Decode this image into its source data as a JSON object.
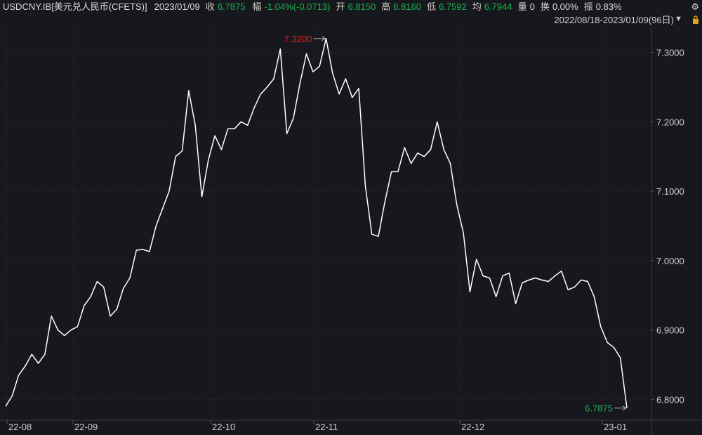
{
  "header": {
    "symbol": "USDCNY.IB[美元兑人民币(CFETS)]",
    "date": "2023/01/09",
    "close_label": "收",
    "close_value": "6.7875",
    "change_label": "幅",
    "change_value": "-1.04%(-0.0713)",
    "open_label": "开",
    "open_value": "6.8150",
    "high_label": "高",
    "high_value": "6.8160",
    "low_label": "低",
    "low_value": "6.7592",
    "avg_label": "均",
    "avg_value": "6.7944",
    "volume_label": "量",
    "volume_value": "0",
    "turnover_label": "换",
    "turnover_value": "0.00%",
    "amplitude_label": "振",
    "amplitude_value": "0.83%",
    "range_text": "2022/08/18-2023/01/09(96日)",
    "icons": [
      "gear-icon",
      "dropdown-triangle-icon",
      "lock-icon"
    ]
  },
  "colors": {
    "background": "#17181d",
    "line": "#ffffff",
    "up_red": "#e02020",
    "down_green": "#19b34c",
    "axis_text": "#cfcfcf",
    "grid": "#2e3038"
  },
  "chart_data": {
    "type": "line",
    "title": "",
    "xlabel": "",
    "ylabel": "",
    "ylim": [
      6.77,
      7.335
    ],
    "y_ticks": [
      "6.8000",
      "6.9000",
      "7.0000",
      "7.1000",
      "7.2000",
      "7.3000"
    ],
    "x_ticks": [
      "22-08",
      "22-09",
      "22-10",
      "22-11",
      "22-12",
      "23-01"
    ],
    "grid": true,
    "legend": "none",
    "annotations": [
      {
        "text": "7.3200",
        "value": 7.32,
        "kind": "high"
      },
      {
        "text": "6.7875",
        "value": 6.7875,
        "kind": "last"
      }
    ],
    "series": [
      {
        "values": [
          6.79,
          6.805,
          6.835,
          6.848,
          6.865,
          6.852,
          6.865,
          6.92,
          6.9,
          6.892,
          6.9,
          6.905,
          6.935,
          6.948,
          6.97,
          6.962,
          6.92,
          6.93,
          6.96,
          6.975,
          7.015,
          7.016,
          7.013,
          7.05,
          7.075,
          7.1,
          7.15,
          7.158,
          7.245,
          7.195,
          7.092,
          7.145,
          7.18,
          7.16,
          7.19,
          7.19,
          7.2,
          7.195,
          7.22,
          7.24,
          7.25,
          7.262,
          7.305,
          7.183,
          7.205,
          7.255,
          7.298,
          7.272,
          7.28,
          7.32,
          7.27,
          7.24,
          7.262,
          7.235,
          7.248,
          7.108,
          7.038,
          7.035,
          7.085,
          7.128,
          7.128,
          7.163,
          7.14,
          7.155,
          7.15,
          7.16,
          7.2,
          7.16,
          7.14,
          7.08,
          7.04,
          6.955,
          7.002,
          6.978,
          6.975,
          6.948,
          6.978,
          6.982,
          6.938,
          6.968,
          6.972,
          6.975,
          6.972,
          6.97,
          6.978,
          6.985,
          6.958,
          6.962,
          6.972,
          6.97,
          6.948,
          6.905,
          6.882,
          6.875,
          6.86,
          6.7875
        ]
      }
    ]
  }
}
